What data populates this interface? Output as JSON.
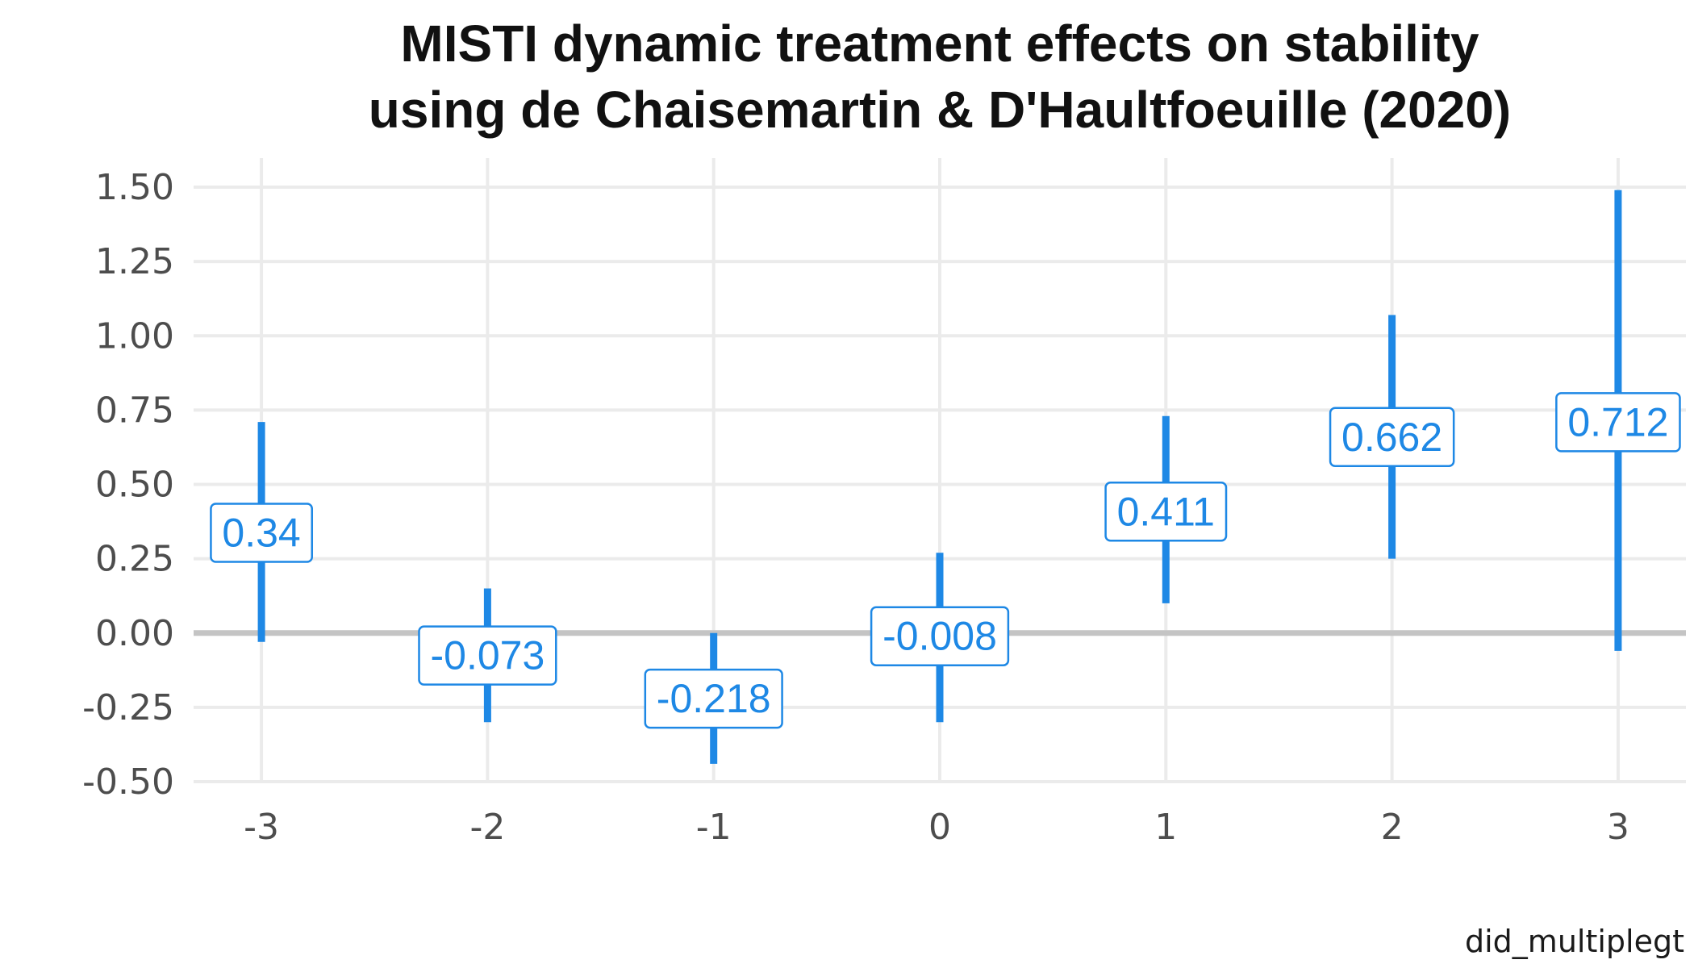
{
  "title": {
    "line1": "MISTI dynamic treatment effects on stability",
    "line2": "using de Chaisemartin & D'Haultfoeuille (2020)"
  },
  "caption": "did_multiplegt",
  "colors": {
    "series": "#1e88e5",
    "zero_line": "#c4c4c4",
    "grid": "#ebebeb"
  },
  "chart_data": {
    "type": "errorbar",
    "x": [
      -3,
      -2,
      -1,
      0,
      1,
      2,
      3
    ],
    "x_tick_labels": [
      "-3",
      "-2",
      "-1",
      "0",
      "1",
      "2",
      "3"
    ],
    "estimates": [
      0.34,
      -0.073,
      -0.218,
      -0.008,
      0.411,
      0.662,
      0.712
    ],
    "estimate_labels": [
      "0.34",
      "-0.073",
      "-0.218",
      "-0.008",
      "0.411",
      "0.662",
      "0.712"
    ],
    "lower": [
      -0.03,
      -0.3,
      -0.44,
      -0.3,
      0.1,
      0.25,
      -0.06
    ],
    "upper": [
      0.71,
      0.15,
      0.0,
      0.27,
      0.73,
      1.07,
      1.49
    ],
    "y_ticks": [
      1.5,
      1.25,
      1.0,
      0.75,
      0.5,
      0.25,
      0.0,
      -0.25,
      -0.5
    ],
    "y_tick_labels": [
      "1.50",
      "1.25",
      "1.00",
      "0.75",
      "0.50",
      "0.25",
      "0.00",
      "-0.25",
      "-0.50"
    ],
    "ylim": [
      -0.5,
      1.5
    ],
    "xlim": [
      -3.3,
      3.3
    ],
    "grid": true,
    "reference_line": 0
  }
}
